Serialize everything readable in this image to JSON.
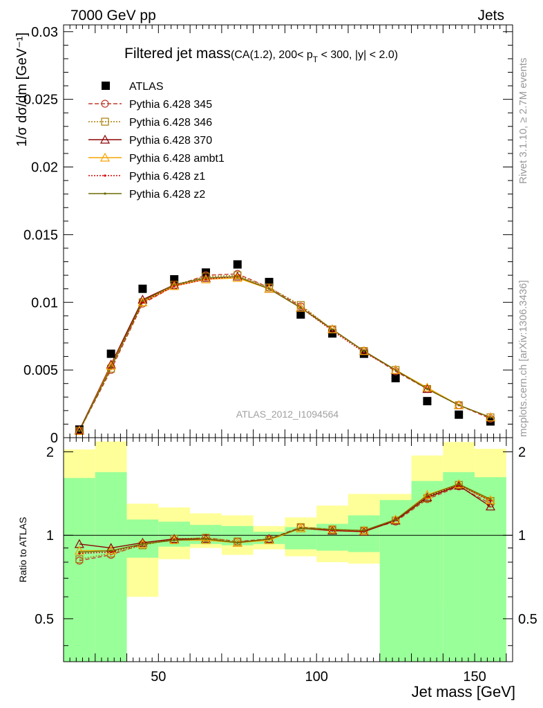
{
  "header": {
    "left": "7000 GeV pp",
    "right": "Jets"
  },
  "side_text": {
    "rivet": "Rivet 3.1.10, ≥ 2.7M events",
    "source": "mcplots.cern.ch [arXiv:1306.3436]"
  },
  "chart_data": [
    {
      "type": "scatter",
      "title": "Filtered jet mass(CA(1.2), 200< p_T < 300, |y| < 2.0)",
      "ylabel": "1/σ dσ/dm [GeV⁻¹]",
      "xlabel": "Jet mass [GeV]",
      "watermark": "ATLAS_2012_I1094564",
      "xlim": [
        20,
        162
      ],
      "ylim": [
        0,
        0.0305
      ],
      "grid": false,
      "legend_position": "top-left",
      "yticks": [
        "0",
        "0.005",
        "0.01",
        "0.015",
        "0.02",
        "0.025",
        "0.03"
      ],
      "x": [
        25,
        35,
        45,
        55,
        65,
        75,
        85,
        95,
        105,
        115,
        125,
        135,
        145,
        155
      ],
      "series": [
        {
          "name": "ATLAS",
          "color": "#000000",
          "marker": "square",
          "values": [
            0.0006,
            0.0062,
            0.011,
            0.0117,
            0.0122,
            0.0128,
            0.0115,
            0.0091,
            0.0077,
            0.0062,
            0.0044,
            0.0027,
            0.0017,
            0.0012
          ]
        },
        {
          "name": "Pythia 6.428 345",
          "color": "#c0392b",
          "marker": "circle",
          "dash": "6,3",
          "values": [
            0.0005,
            0.005,
            0.0099,
            0.0112,
            0.012,
            0.0121,
            0.0111,
            0.0097,
            0.008,
            0.0064,
            0.0049,
            0.0036,
            0.0024,
            0.0014
          ]
        },
        {
          "name": "Pythia 6.428 346",
          "color": "#a67c00",
          "marker": "square-open",
          "dash": "2,2",
          "values": [
            0.0005,
            0.0051,
            0.01,
            0.0113,
            0.0119,
            0.012,
            0.0111,
            0.0098,
            0.008,
            0.0064,
            0.005,
            0.0036,
            0.0024,
            0.0015
          ]
        },
        {
          "name": "Pythia 6.428 370",
          "color": "#8b0000",
          "marker": "triangle",
          "dash": "",
          "values": [
            0.00055,
            0.0054,
            0.0102,
            0.0113,
            0.0118,
            0.0119,
            0.011,
            0.0096,
            0.008,
            0.0064,
            0.005,
            0.0036,
            0.0024,
            0.0015
          ]
        },
        {
          "name": "Pythia 6.428 ambt1",
          "color": "#f5a300",
          "marker": "triangle",
          "dash": "",
          "values": [
            0.0005,
            0.0053,
            0.01,
            0.0112,
            0.0117,
            0.0118,
            0.011,
            0.0096,
            0.008,
            0.0064,
            0.005,
            0.0037,
            0.0024,
            0.0015
          ]
        },
        {
          "name": "Pythia 6.428 z1",
          "color": "#d40000",
          "marker": "dot",
          "dash": "2,2",
          "values": [
            0.0005,
            0.0052,
            0.01,
            0.0112,
            0.0117,
            0.0119,
            0.011,
            0.0096,
            0.0079,
            0.0063,
            0.005,
            0.0036,
            0.0024,
            0.0015
          ]
        },
        {
          "name": "Pythia 6.428 z2",
          "color": "#6b6b00",
          "marker": "dot",
          "dash": "",
          "values": [
            0.0005,
            0.0052,
            0.0101,
            0.0113,
            0.0118,
            0.0119,
            0.011,
            0.0096,
            0.008,
            0.0064,
            0.005,
            0.0036,
            0.0024,
            0.0015
          ]
        }
      ]
    },
    {
      "type": "line",
      "ylabel": "Ratio to ATLAS",
      "xlabel": "Jet mass [GeV]",
      "xlim": [
        20,
        162
      ],
      "ylim": [
        0.35,
        2.25
      ],
      "xticks": [
        "50",
        "100",
        "150"
      ],
      "yticks": [
        "0.5",
        "1",
        "2"
      ],
      "reference": 1,
      "x": [
        25,
        35,
        45,
        55,
        65,
        75,
        85,
        95,
        105,
        115,
        125,
        135,
        145,
        155
      ],
      "bins": [
        [
          20,
          30
        ],
        [
          30,
          40
        ],
        [
          40,
          50
        ],
        [
          50,
          60
        ],
        [
          60,
          70
        ],
        [
          70,
          80
        ],
        [
          80,
          90
        ],
        [
          90,
          100
        ],
        [
          100,
          110
        ],
        [
          110,
          120
        ],
        [
          120,
          130
        ],
        [
          130,
          140
        ],
        [
          140,
          150
        ],
        [
          150,
          160
        ]
      ],
      "band_inner": {
        "color": "#99ff99",
        "lo": [
          0.35,
          0.35,
          0.83,
          0.91,
          0.93,
          0.92,
          0.93,
          0.89,
          0.88,
          0.87,
          0.35,
          0.35,
          0.35,
          0.35
        ],
        "hi": [
          1.61,
          1.69,
          1.14,
          1.12,
          1.09,
          1.08,
          1.03,
          1.07,
          1.1,
          1.18,
          1.34,
          1.57,
          1.69,
          1.62
        ]
      },
      "band_outer": {
        "color": "#ffff99",
        "lo": [
          0.35,
          0.57,
          0.6,
          0.82,
          0.9,
          0.85,
          0.89,
          0.84,
          0.8,
          0.79,
          0.72,
          0.71,
          0.56,
          0.35
        ],
        "hi": [
          2.04,
          2.18,
          1.3,
          1.26,
          1.2,
          1.18,
          1.08,
          1.16,
          1.28,
          1.41,
          1.41,
          1.94,
          2.17,
          2.05
        ]
      },
      "series": [
        {
          "name": "Pythia 6.428 345",
          "color": "#c0392b",
          "marker": "circle",
          "dash": "6,3",
          "values": [
            0.81,
            0.85,
            0.93,
            0.96,
            0.98,
            0.95,
            0.97,
            1.07,
            1.05,
            1.04,
            1.12,
            1.35,
            1.5,
            1.3
          ]
        },
        {
          "name": "Pythia 6.428 346",
          "color": "#a67c00",
          "marker": "square-open",
          "dash": "2,2",
          "values": [
            0.82,
            0.86,
            0.92,
            0.97,
            0.98,
            0.95,
            0.96,
            1.07,
            1.05,
            1.04,
            1.13,
            1.36,
            1.52,
            1.33
          ]
        },
        {
          "name": "Pythia 6.428 370",
          "color": "#8b0000",
          "marker": "triangle",
          "dash": "",
          "values": [
            0.93,
            0.9,
            0.94,
            0.97,
            0.97,
            0.94,
            0.97,
            1.06,
            1.04,
            1.03,
            1.13,
            1.37,
            1.51,
            1.27
          ]
        },
        {
          "name": "Pythia 6.428 ambt1",
          "color": "#f5a300",
          "marker": "triangle",
          "dash": "",
          "values": [
            0.88,
            0.88,
            0.93,
            0.96,
            0.96,
            0.94,
            0.96,
            1.06,
            1.05,
            1.04,
            1.14,
            1.4,
            1.53,
            1.34
          ]
        },
        {
          "name": "Pythia 6.428 z1",
          "color": "#d40000",
          "marker": "dot",
          "dash": "2,2",
          "values": [
            0.86,
            0.87,
            0.93,
            0.96,
            0.97,
            0.94,
            0.97,
            1.06,
            1.04,
            1.03,
            1.14,
            1.38,
            1.52,
            1.33
          ]
        },
        {
          "name": "Pythia 6.428 z2",
          "color": "#6b6b00",
          "marker": "dot",
          "dash": "",
          "values": [
            0.87,
            0.88,
            0.93,
            0.96,
            0.97,
            0.94,
            0.97,
            1.06,
            1.05,
            1.04,
            1.14,
            1.39,
            1.53,
            1.35
          ]
        }
      ]
    }
  ]
}
